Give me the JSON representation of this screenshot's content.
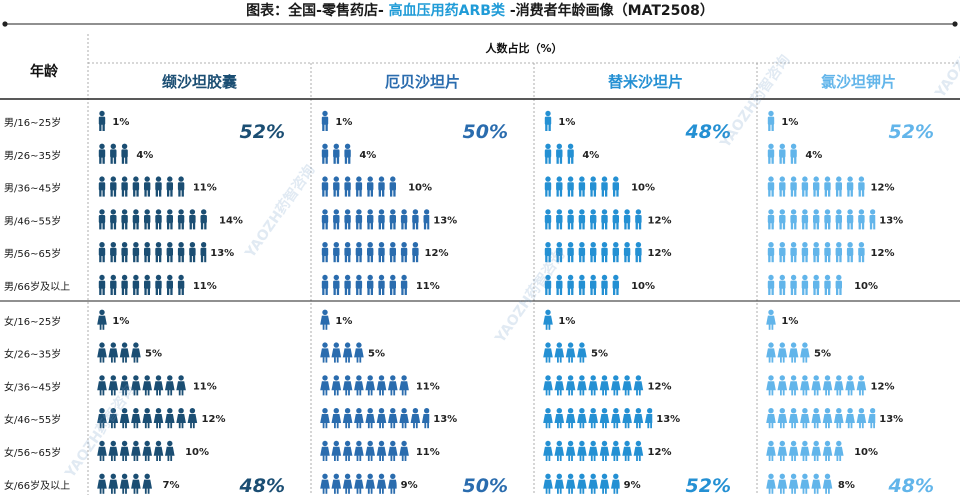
{
  "title": {
    "prefix": "图表：全国-零售药店- ",
    "highlight": "高血压用药ARB类",
    "suffix": " -消费者年龄画像（MAT2508）"
  },
  "chart_data": {
    "type": "pictograph-table",
    "title": "图表：全国-零售药店- 高血压用药ARB类 -消费者年龄画像（MAT2508）",
    "row_header": "年龄",
    "column_group_header": "人数占比（%）",
    "categories": [
      "男/16~25岁",
      "男/26~35岁",
      "男/36~45岁",
      "男/46~55岁",
      "男/56~65岁",
      "男/66岁及以上",
      "女/16~25岁",
      "女/26~35岁",
      "女/36~45岁",
      "女/46~55岁",
      "女/56~65岁",
      "女/66岁及以上"
    ],
    "series": [
      {
        "name": "缬沙坦胶囊",
        "color": "#1b4e73",
        "values": [
          1,
          4,
          11,
          14,
          13,
          11,
          1,
          5,
          11,
          12,
          10,
          7
        ],
        "male_total": "52%",
        "female_total": "48%"
      },
      {
        "name": "厄贝沙坦片",
        "color": "#2a6cae",
        "values": [
          1,
          4,
          10,
          13,
          12,
          11,
          1,
          5,
          11,
          13,
          11,
          9
        ],
        "male_total": "50%",
        "female_total": "50%"
      },
      {
        "name": "替米沙坦片",
        "color": "#2490d3",
        "values": [
          1,
          4,
          10,
          12,
          12,
          10,
          1,
          5,
          12,
          13,
          12,
          9
        ],
        "male_total": "48%",
        "female_total": "52%"
      },
      {
        "name": "氯沙坦钾片",
        "color": "#62b5ea",
        "values": [
          1,
          4,
          12,
          13,
          12,
          10,
          1,
          5,
          12,
          13,
          10,
          8
        ],
        "male_total": "52%",
        "female_total": "48%"
      }
    ],
    "value_suffix": "%"
  },
  "watermark": "YAOZH药智咨询"
}
